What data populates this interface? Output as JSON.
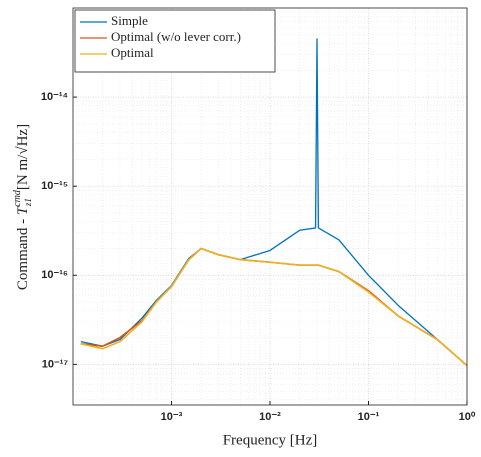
{
  "chart_data": {
    "type": "line",
    "xlabel": "Frequency [Hz]",
    "ylabel": {
      "text": "Command - ",
      "symbol": "T",
      "sup": "cmd",
      "sub": "z1",
      "unit": "[N m/√Hz]"
    },
    "x": [
      0.00012,
      0.0002,
      0.0003,
      0.0005,
      0.0007,
      0.001,
      0.0015,
      0.002,
      0.003,
      0.005,
      0.01,
      0.02,
      0.029,
      0.03,
      0.031,
      0.05,
      0.1,
      0.2,
      0.5,
      1
    ],
    "series": [
      {
        "name": "Simple",
        "color": "#0072BD",
        "values": [
          1.8e-17,
          1.6e-17,
          1.9e-17,
          3.3e-17,
          5.2e-17,
          7.7e-17,
          1.55e-16,
          2e-16,
          1.7e-16,
          1.5e-16,
          1.9e-16,
          3.2e-16,
          3.4e-16,
          4.5e-14,
          3.4e-16,
          2.5e-16,
          1e-16,
          4.6e-17,
          1.9e-17,
          9.7e-18
        ]
      },
      {
        "name": "Optimal (w/o lever corr.)",
        "color": "#D95319",
        "values": [
          1.7e-17,
          1.6e-17,
          2e-17,
          3.1e-17,
          5e-17,
          7.5e-17,
          1.5e-16,
          2e-16,
          1.7e-16,
          1.5e-16,
          1.4e-16,
          1.3e-16,
          1.3e-16,
          1.3e-16,
          1.3e-16,
          1.1e-16,
          6.7e-17,
          3.5e-17,
          1.9e-17,
          9.7e-18
        ]
      },
      {
        "name": "Optimal",
        "color": "#EDB120",
        "values": [
          1.7e-17,
          1.5e-17,
          1.8e-17,
          3e-17,
          5e-17,
          7.5e-17,
          1.5e-16,
          2e-16,
          1.7e-16,
          1.5e-16,
          1.4e-16,
          1.3e-16,
          1.3e-16,
          1.3e-16,
          1.3e-16,
          1.1e-16,
          6.5e-17,
          3.5e-17,
          1.9e-17,
          9.7e-18
        ]
      }
    ],
    "xlim": [
      0.0001,
      1
    ],
    "ylim": [
      3.5e-18,
      1e-13
    ],
    "xticks": [
      {
        "value": 0.001,
        "label": "10⁻³"
      },
      {
        "value": 0.01,
        "label": "10⁻²"
      },
      {
        "value": 0.1,
        "label": "10⁻¹"
      },
      {
        "value": 1,
        "label": "10⁰"
      }
    ],
    "yticks": [
      {
        "value": 1e-17,
        "label": "10⁻¹⁷"
      },
      {
        "value": 1e-16,
        "label": "10⁻¹⁶"
      },
      {
        "value": 1e-15,
        "label": "10⁻¹⁵"
      },
      {
        "value": 1e-14,
        "label": "10⁻¹⁴"
      }
    ],
    "xscale": "log",
    "yscale": "log",
    "grid": true,
    "legend": "upper left"
  }
}
